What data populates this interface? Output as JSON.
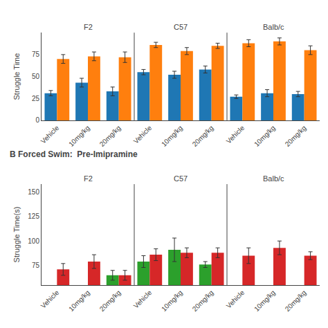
{
  "chart_data": [
    {
      "type": "bar",
      "ylabel": "Struggle Time",
      "annotations": [
        "F2",
        "C57",
        "Balb/c"
      ],
      "categories": [
        "Vehicle",
        "10mg/kg",
        "20mg/kg",
        "Vehicle",
        "10mg/kg",
        "20mg/kg",
        "Vehicle",
        "10mg/kg",
        "20mg/kg"
      ],
      "series": [
        {
          "values": [
            31,
            43,
            33,
            55,
            52,
            58,
            27,
            31,
            30
          ],
          "errors": [
            3,
            5,
            5,
            3,
            4,
            4,
            2,
            4,
            3
          ]
        },
        {
          "values": [
            70,
            73,
            72,
            86,
            79,
            85,
            88,
            90,
            80
          ],
          "errors": [
            5,
            5,
            6,
            3,
            4,
            3,
            4,
            4,
            5
          ]
        }
      ],
      "ylim": [
        0,
        100
      ],
      "yticks": [
        0,
        25,
        50,
        75
      ],
      "grid": false
    },
    {
      "type": "bar",
      "title": "B Forced Swim:  Pre-Imipramine",
      "ylabel": "Struggle Time(s)",
      "annotations": [
        "F2",
        "C57",
        "Balb/c"
      ],
      "categories": [
        "Vehicle",
        "10mg/kg",
        "20mg/kg",
        "Vehicle",
        "10mg/kg",
        "20mg/kg",
        "Vehicle",
        "10mg/kg",
        "20mg/kg"
      ],
      "series": [
        {
          "values": [
            null,
            null,
            65,
            79,
            91,
            76,
            null,
            null,
            null
          ],
          "errors": [
            null,
            null,
            5,
            6,
            12,
            3,
            null,
            null,
            null
          ]
        },
        {
          "values": [
            71,
            79,
            65,
            86,
            88,
            88,
            85,
            93,
            85
          ],
          "errors": [
            6,
            7,
            5,
            6,
            5,
            5,
            8,
            7,
            4
          ]
        }
      ],
      "ylim": [
        55,
        158
      ],
      "yticks": [
        75,
        100,
        125,
        150
      ],
      "grid": false
    }
  ]
}
